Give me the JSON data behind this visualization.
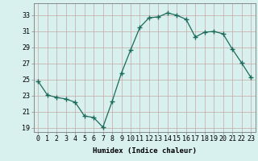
{
  "x": [
    0,
    1,
    2,
    3,
    4,
    5,
    6,
    7,
    8,
    9,
    10,
    11,
    12,
    13,
    14,
    15,
    16,
    17,
    18,
    19,
    20,
    21,
    22,
    23
  ],
  "y": [
    24.8,
    23.1,
    22.8,
    22.6,
    22.2,
    20.5,
    20.3,
    19.1,
    22.3,
    25.8,
    28.7,
    31.5,
    32.7,
    32.8,
    33.3,
    33.0,
    32.5,
    30.3,
    30.9,
    31.0,
    30.7,
    28.8,
    27.1,
    25.3
  ],
  "xlim": [
    -0.5,
    23.5
  ],
  "ylim": [
    18.5,
    34.5
  ],
  "yticks": [
    19,
    21,
    23,
    25,
    27,
    29,
    31,
    33
  ],
  "xticks": [
    0,
    1,
    2,
    3,
    4,
    5,
    6,
    7,
    8,
    9,
    10,
    11,
    12,
    13,
    14,
    15,
    16,
    17,
    18,
    19,
    20,
    21,
    22,
    23
  ],
  "xlabel": "Humidex (Indice chaleur)",
  "line_color": "#1a6b5a",
  "marker": "+",
  "marker_size": 4,
  "bg_color": "#d8f0ee",
  "grid_color": "#b8cece",
  "axis_color": "#888888",
  "label_fontsize": 6.5,
  "tick_fontsize": 6.0
}
